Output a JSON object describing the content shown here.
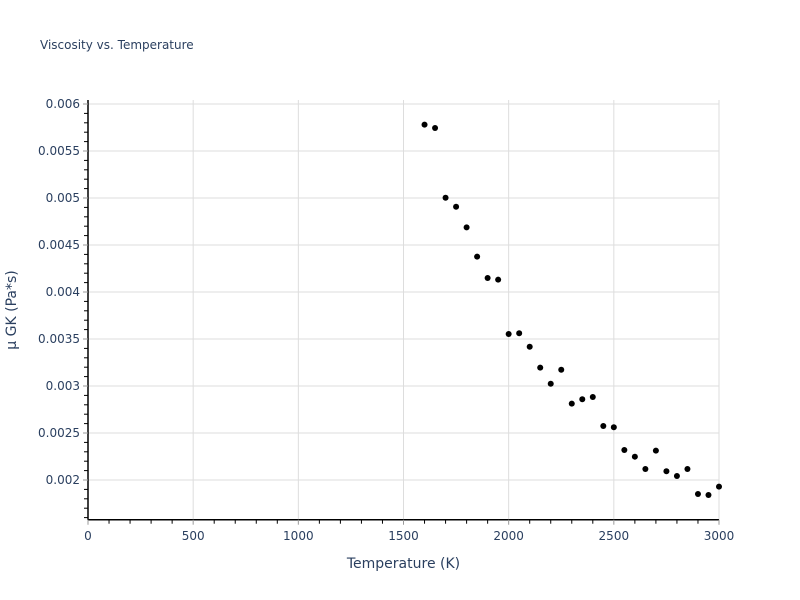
{
  "chart_data": {
    "type": "scatter",
    "title": "Viscosity vs. Temperature",
    "xlabel": "Temperature (K)",
    "ylabel": "μ GK (Pa*s)",
    "xlim": [
      0,
      3000
    ],
    "ylim": [
      0.00158,
      0.00604
    ],
    "grid": true,
    "legend": null,
    "x_ticks": [
      0,
      500,
      1000,
      1500,
      2000,
      2500,
      3000
    ],
    "x_tick_labels": [
      "0",
      "500",
      "1000",
      "1500",
      "2000",
      "2500",
      "3000"
    ],
    "y_ticks": [
      0.002,
      0.0025,
      0.003,
      0.0035,
      0.004,
      0.0045,
      0.005,
      0.0055,
      0.006
    ],
    "y_tick_labels": [
      "0.002",
      "0.0025",
      "0.003",
      "0.0035",
      "0.004",
      "0.0045",
      "0.005",
      "0.0055",
      "0.006"
    ],
    "marker_color": "#000000",
    "series": [
      {
        "name": "μ GK",
        "x": [
          1600,
          1650,
          1700,
          1750,
          1800,
          1850,
          1900,
          1950,
          2000,
          2050,
          2100,
          2150,
          2200,
          2250,
          2300,
          2350,
          2400,
          2450,
          2500,
          2550,
          2600,
          2650,
          2700,
          2750,
          2800,
          2850,
          2900,
          2950,
          3000
        ],
        "y": [
          0.00578,
          0.005745,
          0.005003,
          0.004907,
          0.004688,
          0.004376,
          0.004149,
          0.004131,
          0.003553,
          0.003561,
          0.003418,
          0.003195,
          0.003024,
          0.003173,
          0.002812,
          0.002859,
          0.002883,
          0.002574,
          0.002561,
          0.002319,
          0.002248,
          0.002117,
          0.002312,
          0.002093,
          0.002043,
          0.002117,
          0.001851,
          0.00184,
          0.001929
        ]
      }
    ]
  }
}
